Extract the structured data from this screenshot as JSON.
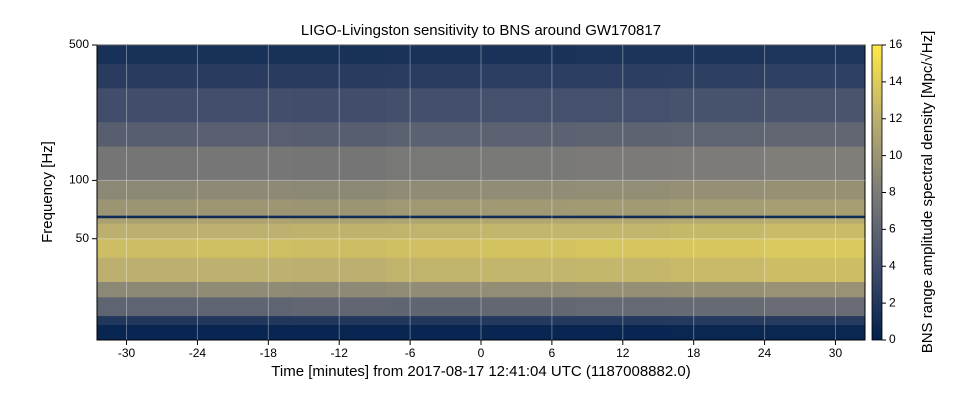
{
  "chart_data": {
    "type": "heatmap",
    "title": "LIGO-Livingston sensitivity to BNS around GW170817",
    "xlabel": "Time [minutes] from 2017-08-17 12:41:04 UTC (1187008882.0)",
    "ylabel": "Frequency [Hz]",
    "x_edges": [
      -32.5,
      -24,
      -16,
      -8,
      0,
      8,
      16,
      24,
      32.5
    ],
    "y_edges": [
      15,
      18,
      20,
      25,
      30,
      40,
      50,
      60,
      64,
      66,
      80,
      100,
      150,
      200,
      300,
      400,
      500
    ],
    "values": [
      [
        0.5,
        0.5,
        0.5,
        0.5,
        0.5,
        0.5,
        0.6,
        0.6
      ],
      [
        2,
        2,
        2,
        2,
        2.2,
        2.2,
        2.3,
        2.4
      ],
      [
        6,
        6,
        6.2,
        6.1,
        6.3,
        6.4,
        6.5,
        6.7
      ],
      [
        9,
        9.2,
        9.1,
        9.3,
        9.4,
        9.5,
        9.6,
        9.8
      ],
      [
        12,
        12.1,
        12,
        12.3,
        12.4,
        12.5,
        12.7,
        13
      ],
      [
        13,
        13.1,
        13,
        13.2,
        13.4,
        13.5,
        13.6,
        13.8
      ],
      [
        12,
        12.1,
        12.2,
        12.3,
        12.4,
        12.4,
        12.6,
        12.8
      ],
      [
        11,
        11.1,
        11,
        11.2,
        11.3,
        11.4,
        11.5,
        11.7
      ],
      [
        1,
        1,
        1,
        1,
        1,
        1,
        1,
        1
      ],
      [
        10,
        10.1,
        10,
        10.2,
        10.3,
        10.4,
        10.5,
        10.7
      ],
      [
        9,
        9.1,
        9,
        9.2,
        9.3,
        9.4,
        9.5,
        9.7
      ],
      [
        7.5,
        7.6,
        7.5,
        7.7,
        7.8,
        7.9,
        8,
        8.2
      ],
      [
        5.5,
        5.6,
        5.5,
        5.7,
        5.8,
        5.9,
        6,
        6.2
      ],
      [
        4,
        4.1,
        4,
        4.2,
        4.3,
        4.3,
        4.4,
        4.6
      ],
      [
        2.5,
        2.5,
        2.5,
        2.6,
        2.7,
        2.7,
        2.8,
        2.9
      ],
      [
        1.5,
        1.5,
        1.5,
        1.6,
        1.6,
        1.7,
        1.7,
        1.8
      ]
    ],
    "xlim": [
      -32.5,
      32.5
    ],
    "xticks": [
      -30,
      -24,
      -18,
      -12,
      -6,
      0,
      6,
      12,
      18,
      24,
      30
    ],
    "ylim": [
      15,
      500
    ],
    "yticks": [
      50,
      100,
      500
    ],
    "ylog": true,
    "grid": true,
    "colormap": [
      "#00204d",
      "#414d6b",
      "#7c7b78",
      "#bcaf6f",
      "#ffe945"
    ],
    "colorbar": {
      "label": "BNS range amplitude spectral density [Mpc/√Hz]",
      "lim": [
        0,
        16
      ],
      "ticks": [
        0,
        2,
        4,
        6,
        8,
        10,
        12,
        14,
        16
      ]
    }
  }
}
